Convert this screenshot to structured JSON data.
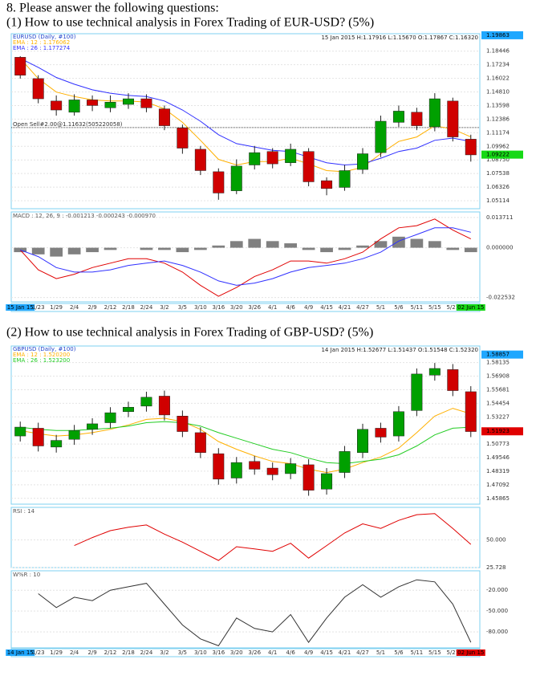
{
  "question": "8. Please answer the following questions:",
  "charts": [
    {
      "type": "candlestick",
      "prompt": "(1) How to use technical analysis in Forex Trading of EUR-USD? (5%)",
      "title": "EURUSD (Daily, #100)",
      "header": "15 Jan 2015 H:1.17916 L:1.15670 O:1.17867 C:1.16320",
      "categories": [
        "15 Jan 15",
        "1/23",
        "1/29",
        "2/4",
        "2/9",
        "2/12",
        "2/18",
        "2/24",
        "3/2",
        "3/5",
        "3/10",
        "3/16",
        "3/20",
        "3/26",
        "4/1",
        "4/6",
        "4/9",
        "4/15",
        "4/21",
        "4/27",
        "5/1",
        "5/6",
        "5/11",
        "5/15",
        "5/21",
        "02 Jun 15"
      ],
      "axis_highlight": [
        "#1ea7ff",
        "#16d916"
      ],
      "open": [
        1.179,
        1.16,
        1.14,
        1.13,
        1.141,
        1.134,
        1.137,
        1.142,
        1.133,
        1.116,
        1.097,
        1.077,
        1.06,
        1.083,
        1.095,
        1.085,
        1.095,
        1.069,
        1.063,
        1.079,
        1.094,
        1.121,
        1.13,
        1.117,
        1.14,
        1.106
      ],
      "high": [
        1.18,
        1.163,
        1.145,
        1.146,
        1.145,
        1.145,
        1.147,
        1.146,
        1.136,
        1.119,
        1.1,
        1.08,
        1.088,
        1.1,
        1.098,
        1.102,
        1.098,
        1.072,
        1.083,
        1.098,
        1.127,
        1.136,
        1.134,
        1.147,
        1.143,
        1.11
      ],
      "low": [
        1.16,
        1.138,
        1.127,
        1.127,
        1.131,
        1.13,
        1.133,
        1.13,
        1.114,
        1.093,
        1.074,
        1.052,
        1.057,
        1.079,
        1.08,
        1.082,
        1.064,
        1.056,
        1.06,
        1.075,
        1.09,
        1.117,
        1.114,
        1.113,
        1.104,
        1.086
      ],
      "close": [
        1.163,
        1.142,
        1.132,
        1.141,
        1.136,
        1.139,
        1.142,
        1.134,
        1.118,
        1.098,
        1.078,
        1.058,
        1.082,
        1.094,
        1.084,
        1.097,
        1.068,
        1.062,
        1.078,
        1.093,
        1.122,
        1.131,
        1.118,
        1.142,
        1.108,
        1.092
      ],
      "up_color": "#00a000",
      "down_color": "#d00000",
      "ylim": [
        1.044,
        1.2
      ],
      "yticks": [
        1.18446,
        1.17234,
        1.16022,
        {
          "value": 1.1481,
          "label": "1.14810"
        },
        1.13598,
        1.12386,
        1.11174,
        1.09962,
        {
          "value": 1.0875,
          "label": "1.08750"
        },
        1.07538,
        1.06326,
        1.05114
      ],
      "markers": [
        {
          "value": 1.19863,
          "color": "#1ea7ff"
        },
        {
          "value": 1.09222,
          "color": "#16d916"
        }
      ],
      "order_line": {
        "label": "Open Sell#2.00@1.11632(505220058)",
        "value": 1.11632
      },
      "series": [
        {
          "name": "EMA : 12 : 1.176062",
          "color": "#ffb000",
          "values": [
            1.178,
            1.16,
            1.148,
            1.144,
            1.141,
            1.14,
            1.14,
            1.139,
            1.133,
            1.121,
            1.105,
            1.088,
            1.083,
            1.086,
            1.086,
            1.089,
            1.084,
            1.078,
            1.077,
            1.081,
            1.093,
            1.104,
            1.108,
            1.118,
            1.115,
            1.108
          ]
        },
        {
          "name": "EMA : 26 : 1.177274",
          "color": "#3030ff",
          "values": [
            1.178,
            1.17,
            1.161,
            1.155,
            1.15,
            1.147,
            1.145,
            1.144,
            1.14,
            1.132,
            1.122,
            1.11,
            1.102,
            1.099,
            1.096,
            1.095,
            1.09,
            1.085,
            1.083,
            1.084,
            1.089,
            1.095,
            1.098,
            1.105,
            1.107,
            1.104
          ]
        }
      ],
      "indicators": [
        {
          "type": "macd",
          "label": "MACD : 12, 26, 9 : -0.001213 -0.000243 -0.000970",
          "ylim": [
            -0.0245,
            0.0162
          ],
          "yticks": [
            0.013711,
            {
              "value": 0,
              "label": "0.000000"
            },
            -0.022532
          ],
          "histogram": {
            "color": "#808080",
            "values": [
              -0.002,
              -0.003,
              -0.004,
              -0.003,
              -0.002,
              -0.001,
              0.0,
              -0.001,
              -0.001,
              -0.002,
              -0.001,
              0.001,
              0.003,
              0.004,
              0.003,
              0.002,
              -0.001,
              -0.002,
              -0.001,
              0.001,
              0.003,
              0.005,
              0.004,
              0.003,
              -0.001,
              -0.002
            ]
          },
          "series": [
            {
              "color": "#e00000",
              "values": [
                -0.001,
                -0.01,
                -0.014,
                -0.012,
                -0.009,
                -0.007,
                -0.005,
                -0.005,
                -0.007,
                -0.011,
                -0.017,
                -0.022,
                -0.018,
                -0.013,
                -0.01,
                -0.006,
                -0.006,
                -0.007,
                -0.005,
                -0.002,
                0.004,
                0.009,
                0.01,
                0.013,
                0.008,
                0.004
              ]
            },
            {
              "color": "#3030ff",
              "values": [
                -0.001,
                -0.004,
                -0.009,
                -0.011,
                -0.011,
                -0.01,
                -0.008,
                -0.007,
                -0.006,
                -0.008,
                -0.011,
                -0.015,
                -0.017,
                -0.016,
                -0.014,
                -0.011,
                -0.009,
                -0.008,
                -0.007,
                -0.005,
                -0.002,
                0.003,
                0.006,
                0.009,
                0.009,
                0.007
              ]
            }
          ]
        }
      ]
    },
    {
      "type": "candlestick",
      "prompt": "(2) How to use technical analysis in Forex Trading of GBP-USD? (5%)",
      "title": "GBPUSD (Daily, #100)",
      "header": "14 Jan 2015 H:1.52677 L:1.51437 O:1.51548 C:1.52320",
      "categories": [
        "14 Jan 15",
        "1/23",
        "1/29",
        "2/4",
        "2/9",
        "2/12",
        "2/18",
        "2/24",
        "3/2",
        "3/5",
        "3/10",
        "3/16",
        "3/20",
        "3/26",
        "4/1",
        "4/6",
        "4/9",
        "4/15",
        "4/21",
        "4/27",
        "5/1",
        "5/6",
        "5/11",
        "5/15",
        "5/21",
        "02 Jun 15"
      ],
      "axis_highlight": [
        "#1ea7ff",
        "#e00000"
      ],
      "open": [
        1.515,
        1.522,
        1.505,
        1.512,
        1.521,
        1.527,
        1.537,
        1.542,
        1.551,
        1.533,
        1.518,
        1.499,
        1.477,
        1.492,
        1.486,
        1.481,
        1.489,
        1.467,
        1.482,
        1.5,
        1.522,
        1.515,
        1.538,
        1.57,
        1.575,
        1.555
      ],
      "high": [
        1.528,
        1.527,
        1.516,
        1.525,
        1.531,
        1.541,
        1.546,
        1.555,
        1.556,
        1.538,
        1.523,
        1.504,
        1.496,
        1.497,
        1.491,
        1.495,
        1.494,
        1.486,
        1.506,
        1.526,
        1.527,
        1.542,
        1.576,
        1.581,
        1.58,
        1.56
      ],
      "low": [
        1.51,
        1.501,
        1.5,
        1.507,
        1.516,
        1.522,
        1.532,
        1.537,
        1.529,
        1.514,
        1.495,
        1.471,
        1.472,
        1.48,
        1.475,
        1.476,
        1.461,
        1.462,
        1.477,
        1.495,
        1.509,
        1.51,
        1.533,
        1.565,
        1.551,
        1.514
      ],
      "close": [
        1.523,
        1.506,
        1.511,
        1.52,
        1.526,
        1.536,
        1.541,
        1.55,
        1.534,
        1.519,
        1.5,
        1.476,
        1.491,
        1.485,
        1.48,
        1.49,
        1.466,
        1.481,
        1.501,
        1.521,
        1.514,
        1.537,
        1.571,
        1.576,
        1.556,
        1.519
      ],
      "up_color": "#00a000",
      "down_color": "#d00000",
      "ylim": [
        1.4534,
        1.5963
      ],
      "yticks": [
        1.58135,
        1.56908,
        1.55681,
        1.54454,
        1.53227,
        1.50773,
        1.49546,
        1.48319,
        1.47092,
        1.45865
      ],
      "markers": [
        {
          "value": 1.58857,
          "color": "#1ea7ff"
        },
        {
          "value": 1.51923,
          "color": "#e00000"
        }
      ],
      "series": [
        {
          "name": "EMA : 12 : 1.520200",
          "color": "#ffb000",
          "values": [
            1.52,
            1.517,
            1.515,
            1.516,
            1.518,
            1.521,
            1.525,
            1.53,
            1.531,
            1.528,
            1.521,
            1.51,
            1.503,
            1.497,
            1.492,
            1.49,
            1.485,
            1.482,
            1.485,
            1.491,
            1.496,
            1.504,
            1.518,
            1.533,
            1.54,
            1.535
          ]
        },
        {
          "name": "EMA : 26 : 1.523200",
          "color": "#22cc22",
          "values": [
            1.523,
            1.521,
            1.52,
            1.52,
            1.521,
            1.522,
            1.524,
            1.527,
            1.528,
            1.527,
            1.524,
            1.518,
            1.513,
            1.508,
            1.503,
            1.5,
            1.495,
            1.491,
            1.49,
            1.492,
            1.494,
            1.498,
            1.506,
            1.516,
            1.522,
            1.523
          ]
        }
      ],
      "indicators": [
        {
          "type": "rsi",
          "label": "RSI : 14",
          "ylim": [
            25.728,
            78.4
          ],
          "yticks": [
            {
              "value": 50,
              "label": "50.000"
            },
            25.728
          ],
          "series": [
            {
              "color": "#e00000",
              "values": [
                null,
                null,
                null,
                45,
                52,
                58,
                61,
                63,
                55,
                48,
                40,
                32,
                44,
                42,
                40,
                47,
                34,
                45,
                56,
                64,
                60,
                67,
                72,
                73,
                60,
                46
              ]
            }
          ]
        },
        {
          "type": "wpr",
          "label": "W%R : 10",
          "ylim": [
            -103,
            8
          ],
          "yticks": [
            {
              "value": -20,
              "label": "-20.000"
            },
            {
              "value": -50,
              "label": "-50.000"
            },
            {
              "value": -80,
              "label": "-80.000"
            }
          ],
          "series": [
            {
              "color": "#333333",
              "values": [
                null,
                -25,
                -45,
                -30,
                -35,
                -20,
                -15,
                -10,
                -40,
                -70,
                -90,
                -100,
                -60,
                -75,
                -80,
                -55,
                -95,
                -60,
                -30,
                -12,
                -30,
                -15,
                -5,
                -8,
                -40,
                -95
              ]
            }
          ]
        }
      ]
    }
  ]
}
